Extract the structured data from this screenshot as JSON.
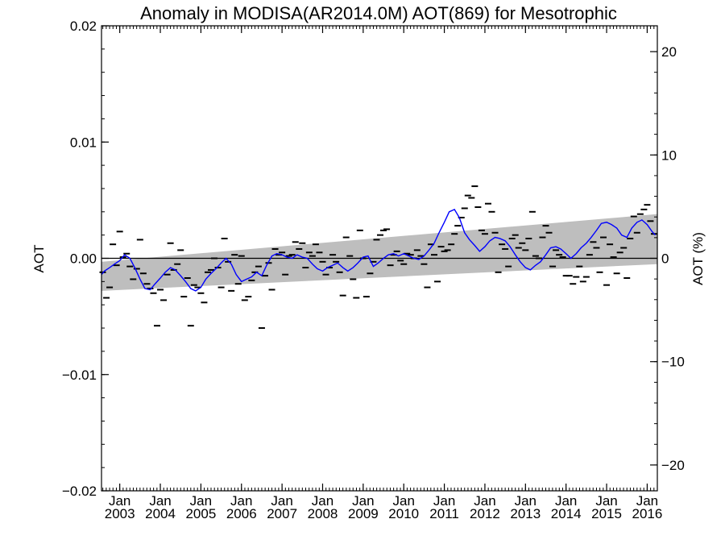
{
  "chart_data": {
    "type": "line",
    "title": "Anomaly in MODISA(AR2014.0M) AOT(869) for Mesotrophic",
    "ylabel": "AOT",
    "y2label": "AOT (%)",
    "ylim": [
      -0.02,
      0.02
    ],
    "y2lim": [
      -22.5,
      22.5
    ],
    "xlim": [
      2002.55,
      2016.25
    ],
    "yticks": [
      {
        "value": 0.02,
        "label": "0.02"
      },
      {
        "value": 0.01,
        "label": "0.01"
      },
      {
        "value": 0.0,
        "label": "0.00"
      },
      {
        "value": -0.01,
        "label": "−0.01"
      },
      {
        "value": -0.02,
        "label": "−0.02"
      }
    ],
    "y2ticks": [
      {
        "value": 20,
        "label": "20"
      },
      {
        "value": 10,
        "label": "10"
      },
      {
        "value": 0,
        "label": "0"
      },
      {
        "value": -10,
        "label": "−10"
      },
      {
        "value": -20,
        "label": "−20"
      }
    ],
    "xticks": [
      {
        "value": 2003.0,
        "month": "Jan",
        "year": "2003"
      },
      {
        "value": 2004.0,
        "month": "Jan",
        "year": "2004"
      },
      {
        "value": 2005.0,
        "month": "Jan",
        "year": "2005"
      },
      {
        "value": 2006.0,
        "month": "Jan",
        "year": "2006"
      },
      {
        "value": 2007.0,
        "month": "Jan",
        "year": "2007"
      },
      {
        "value": 2008.0,
        "month": "Jan",
        "year": "2008"
      },
      {
        "value": 2009.0,
        "month": "Jan",
        "year": "2009"
      },
      {
        "value": 2010.0,
        "month": "Jan",
        "year": "2010"
      },
      {
        "value": 2011.0,
        "month": "Jan",
        "year": "2011"
      },
      {
        "value": 2012.0,
        "month": "Jan",
        "year": "2012"
      },
      {
        "value": 2013.0,
        "month": "Jan",
        "year": "2013"
      },
      {
        "value": 2014.0,
        "month": "Jan",
        "year": "2014"
      },
      {
        "value": 2015.0,
        "month": "Jan",
        "year": "2015"
      },
      {
        "value": 2016.0,
        "month": "Jan",
        "year": "2016"
      }
    ],
    "zero_line": 0.0,
    "trend_band": {
      "lower_start": -0.0028,
      "upper_start": -0.0003,
      "lower_end": -0.0005,
      "upper_end": 0.0038,
      "color": "#bebebe"
    },
    "series": [
      {
        "style": "dash",
        "color": "#000000",
        "x": [
          2002.58,
          2002.67,
          2002.75,
          2002.83,
          2002.92,
          2003.0,
          2003.08,
          2003.17,
          2003.25,
          2003.33,
          2003.42,
          2003.5,
          2003.58,
          2003.67,
          2003.75,
          2003.83,
          2003.92,
          2004.0,
          2004.08,
          2004.17,
          2004.25,
          2004.33,
          2004.42,
          2004.5,
          2004.58,
          2004.67,
          2004.75,
          2004.83,
          2004.92,
          2005.0,
          2005.08,
          2005.17,
          2005.25,
          2005.33,
          2005.42,
          2005.5,
          2005.58,
          2005.67,
          2005.75,
          2005.83,
          2005.92,
          2006.0,
          2006.08,
          2006.17,
          2006.25,
          2006.33,
          2006.42,
          2006.5,
          2006.58,
          2006.67,
          2006.75,
          2006.83,
          2006.92,
          2007.0,
          2007.08,
          2007.17,
          2007.25,
          2007.33,
          2007.42,
          2007.5,
          2007.58,
          2007.67,
          2007.75,
          2007.83,
          2007.92,
          2008.0,
          2008.08,
          2008.17,
          2008.25,
          2008.33,
          2008.42,
          2008.5,
          2008.58,
          2008.67,
          2008.75,
          2008.83,
          2008.92,
          2009.0,
          2009.08,
          2009.17,
          2009.25,
          2009.33,
          2009.42,
          2009.5,
          2009.58,
          2009.67,
          2009.75,
          2009.83,
          2009.92,
          2010.0,
          2010.08,
          2010.17,
          2010.25,
          2010.33,
          2010.42,
          2010.5,
          2010.58,
          2010.67,
          2010.75,
          2010.83,
          2010.92,
          2011.0,
          2011.08,
          2011.17,
          2011.25,
          2011.33,
          2011.42,
          2011.5,
          2011.58,
          2011.67,
          2011.75,
          2011.83,
          2011.92,
          2012.0,
          2012.08,
          2012.17,
          2012.25,
          2012.33,
          2012.42,
          2012.5,
          2012.58,
          2012.67,
          2012.75,
          2012.83,
          2012.92,
          2013.0,
          2013.08,
          2013.17,
          2013.25,
          2013.33,
          2013.42,
          2013.5,
          2013.58,
          2013.67,
          2013.75,
          2013.83,
          2013.92,
          2014.0,
          2014.08,
          2014.17,
          2014.25,
          2014.33,
          2014.42,
          2014.5,
          2014.58,
          2014.67,
          2014.75,
          2014.83,
          2014.92,
          2015.0,
          2015.08,
          2015.17,
          2015.25,
          2015.33,
          2015.42,
          2015.5,
          2015.58,
          2015.67,
          2015.75,
          2015.83,
          2015.92,
          2016.0,
          2016.08,
          2016.17
        ],
        "values": [
          -0.0012,
          -0.0034,
          -0.0025,
          0.0012,
          -0.0006,
          0.0023,
          0.0001,
          0.0004,
          -0.0007,
          -0.0018,
          -0.0009,
          0.0016,
          -0.0013,
          -0.0022,
          -0.0026,
          -0.003,
          -0.0058,
          -0.0027,
          -0.0036,
          -0.0014,
          0.0013,
          -0.001,
          -0.0005,
          0.0007,
          -0.0033,
          -0.0017,
          -0.0058,
          -0.0023,
          -0.0025,
          -0.003,
          -0.0038,
          -0.0012,
          -0.001,
          0.0,
          -0.0008,
          -0.0025,
          0.0017,
          -0.0003,
          -0.0028,
          0.0003,
          -0.0022,
          0.0002,
          -0.0036,
          -0.0033,
          -0.0019,
          -0.0012,
          -0.0007,
          -0.006,
          -0.0015,
          -0.0004,
          -0.0027,
          0.0008,
          0.0003,
          0.0005,
          -0.0014,
          0.0002,
          0.0003,
          0.0014,
          0.0008,
          0.0013,
          -0.0008,
          0.0005,
          0.0002,
          0.0012,
          0.0005,
          -0.0003,
          -0.0014,
          -0.0008,
          0.0003,
          -0.0003,
          -0.0012,
          -0.0032,
          0.0018,
          0.0002,
          -0.0018,
          -0.0034,
          0.0024,
          0.0,
          -0.0033,
          -0.0013,
          -0.0003,
          0.0016,
          0.002,
          0.0024,
          0.0025,
          -0.0006,
          0.0003,
          0.0006,
          -0.0002,
          -0.0005,
          0.0004,
          0.0003,
          0.0,
          0.0007,
          0.0002,
          -0.0005,
          -0.0025,
          0.0012,
          0.0003,
          -0.002,
          0.001,
          0.0006,
          0.0007,
          0.0012,
          0.0021,
          0.0028,
          0.0035,
          0.0043,
          0.0054,
          0.0052,
          0.0062,
          0.0044,
          0.0024,
          0.0021,
          0.0047,
          0.004,
          0.0022,
          -0.0012,
          0.0012,
          0.0008,
          -0.0007,
          0.0017,
          0.002,
          0.0009,
          0.0013,
          0.0007,
          0.0017,
          0.004,
          0.0002,
          0.0,
          0.0018,
          0.0028,
          0.0022,
          -0.0007,
          0.0007,
          0.0003,
          0.0001,
          -0.0015,
          -0.0015,
          -0.0022,
          -0.0016,
          -0.0007,
          -0.002,
          -0.0016,
          0.0003,
          0.0014,
          0.0009,
          -0.0012,
          0.0018,
          -0.0023,
          0.0012,
          0.0001,
          -0.0013,
          0.0005,
          0.0009,
          -0.0017,
          0.0017,
          0.0036,
          0.0022,
          0.0038,
          0.0042,
          0.0046,
          0.0032,
          0.0021
        ]
      },
      {
        "style": "line",
        "color": "#0000ff",
        "x": [
          2002.5,
          2002.62,
          2002.75,
          2002.87,
          2003.0,
          2003.12,
          2003.25,
          2003.37,
          2003.5,
          2003.62,
          2003.75,
          2003.87,
          2004.0,
          2004.12,
          2004.25,
          2004.37,
          2004.5,
          2004.62,
          2004.75,
          2004.87,
          2005.0,
          2005.12,
          2005.25,
          2005.37,
          2005.5,
          2005.62,
          2005.75,
          2005.87,
          2006.0,
          2006.12,
          2006.25,
          2006.37,
          2006.5,
          2006.62,
          2006.75,
          2006.87,
          2007.0,
          2007.12,
          2007.25,
          2007.37,
          2007.5,
          2007.62,
          2007.75,
          2007.87,
          2008.0,
          2008.12,
          2008.25,
          2008.37,
          2008.5,
          2008.62,
          2008.75,
          2008.87,
          2009.0,
          2009.12,
          2009.25,
          2009.37,
          2009.5,
          2009.62,
          2009.75,
          2009.87,
          2010.0,
          2010.12,
          2010.25,
          2010.37,
          2010.5,
          2010.62,
          2010.75,
          2010.87,
          2011.0,
          2011.12,
          2011.25,
          2011.37,
          2011.5,
          2011.62,
          2011.75,
          2011.87,
          2012.0,
          2012.12,
          2012.25,
          2012.37,
          2012.5,
          2012.62,
          2012.75,
          2012.87,
          2013.0,
          2013.12,
          2013.25,
          2013.37,
          2013.5,
          2013.62,
          2013.75,
          2013.87,
          2014.0,
          2014.12,
          2014.25,
          2014.37,
          2014.5,
          2014.62,
          2014.75,
          2014.87,
          2015.0,
          2015.12,
          2015.25,
          2015.37,
          2015.5,
          2015.62,
          2015.75,
          2015.87,
          2016.0,
          2016.12,
          2016.2
        ],
        "values": [
          -0.0014,
          -0.0011,
          -0.0008,
          -0.0005,
          -0.0002,
          0.0003,
          0.0,
          -0.0008,
          -0.0018,
          -0.0026,
          -0.0027,
          -0.0022,
          -0.0017,
          -0.0012,
          -0.0008,
          -0.001,
          -0.0015,
          -0.002,
          -0.0026,
          -0.0028,
          -0.0025,
          -0.0018,
          -0.0013,
          -0.0009,
          -0.0004,
          0.0,
          -0.0005,
          -0.0014,
          -0.002,
          -0.0018,
          -0.0016,
          -0.0012,
          -0.0015,
          -0.0006,
          0.0002,
          0.0004,
          0.0003,
          0.0001,
          0.0,
          0.0003,
          0.0001,
          0.0,
          -0.0005,
          -0.0009,
          -0.0011,
          -0.0008,
          -0.0006,
          -0.0004,
          -0.0008,
          -0.0011,
          -0.0008,
          -0.0004,
          0.0001,
          0.0002,
          -0.0007,
          -0.0004,
          0.0,
          0.0003,
          0.0004,
          0.0002,
          0.0004,
          0.0002,
          0.0,
          -0.0001,
          0.0002,
          0.0007,
          0.0013,
          0.0022,
          0.0031,
          0.004,
          0.0042,
          0.0035,
          0.0022,
          0.0016,
          0.0011,
          0.0006,
          0.001,
          0.0015,
          0.0018,
          0.0017,
          0.0015,
          0.001,
          0.0003,
          -0.0003,
          -0.0008,
          -0.001,
          -0.0006,
          -0.0003,
          0.0003,
          0.0009,
          0.001,
          0.0008,
          0.0004,
          0.0,
          0.0004,
          0.0009,
          0.0013,
          0.0018,
          0.0024,
          0.003,
          0.0031,
          0.0029,
          0.0026,
          0.002,
          0.0018,
          0.0026,
          0.0031,
          0.0033,
          0.0029,
          0.0023,
          0.002
        ]
      }
    ]
  }
}
